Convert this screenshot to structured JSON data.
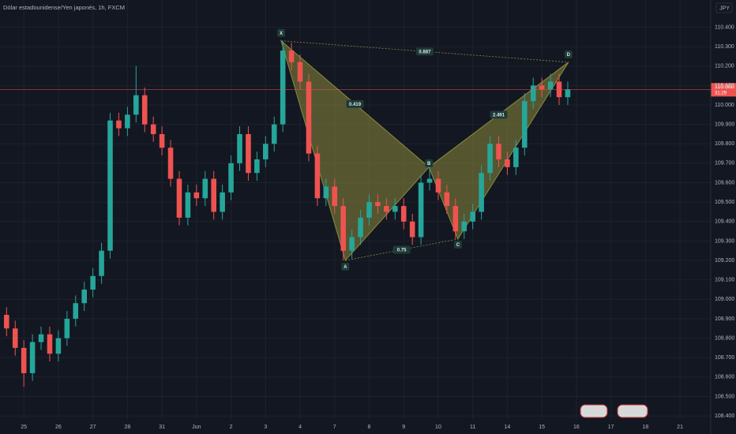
{
  "chart_data": {
    "type": "candlestick",
    "title": "Dólar estadounidense/Yen japonés, 1h, FXCM",
    "currency": "JPY",
    "up_color": "#26a69a",
    "down_color": "#ef5350",
    "grid": true,
    "xlim": [
      -0.69,
      19.89
    ],
    "ylim": [
      108.38,
      110.54
    ],
    "xticks": [
      {
        "value": 0,
        "label": "25"
      },
      {
        "value": 1,
        "label": "26"
      },
      {
        "value": 2,
        "label": "27"
      },
      {
        "value": 3,
        "label": "28"
      },
      {
        "value": 4,
        "label": "31"
      },
      {
        "value": 5,
        "label": "Jun"
      },
      {
        "value": 6,
        "label": "2"
      },
      {
        "value": 7,
        "label": "3"
      },
      {
        "value": 8,
        "label": "4"
      },
      {
        "value": 9,
        "label": "7"
      },
      {
        "value": 10,
        "label": "8"
      },
      {
        "value": 11,
        "label": "9"
      },
      {
        "value": 12,
        "label": "10"
      },
      {
        "value": 13,
        "label": "11"
      },
      {
        "value": 14,
        "label": "14"
      },
      {
        "value": 15,
        "label": "15"
      },
      {
        "value": 16,
        "label": "16"
      },
      {
        "value": 17,
        "label": "17"
      },
      {
        "value": 18,
        "label": "18"
      },
      {
        "value": 19,
        "label": "21"
      }
    ],
    "yticks": [
      {
        "value": 108.4,
        "label": "108.400"
      },
      {
        "value": 108.5,
        "label": "108.500"
      },
      {
        "value": 108.6,
        "label": "108.600"
      },
      {
        "value": 108.7,
        "label": "108.700"
      },
      {
        "value": 108.8,
        "label": "108.800"
      },
      {
        "value": 108.9,
        "label": "108.900"
      },
      {
        "value": 109.0,
        "label": "109.000"
      },
      {
        "value": 109.1,
        "label": "109.100"
      },
      {
        "value": 109.2,
        "label": "109.200"
      },
      {
        "value": 109.3,
        "label": "109.300"
      },
      {
        "value": 109.4,
        "label": "109.400"
      },
      {
        "value": 109.5,
        "label": "109.500"
      },
      {
        "value": 109.6,
        "label": "109.600"
      },
      {
        "value": 109.7,
        "label": "109.700"
      },
      {
        "value": 109.8,
        "label": "109.800"
      },
      {
        "value": 109.9,
        "label": "109.900"
      },
      {
        "value": 110.0,
        "label": "110.000"
      },
      {
        "value": 110.1,
        "label": "110.100"
      },
      {
        "value": 110.2,
        "label": "110.200"
      },
      {
        "value": 110.3,
        "label": "110.300"
      },
      {
        "value": 110.4,
        "label": "110.400"
      }
    ],
    "x": [
      -0.5,
      -0.25,
      0,
      0.25,
      0.5,
      0.75,
      1,
      1.25,
      1.5,
      1.75,
      2,
      2.25,
      2.5,
      2.75,
      3,
      3.25,
      3.5,
      3.75,
      4,
      4.25,
      4.5,
      4.75,
      5,
      5.25,
      5.5,
      5.75,
      6,
      6.25,
      6.5,
      6.75,
      7,
      7.25,
      7.5,
      7.75,
      8,
      8.25,
      8.5,
      8.75,
      9,
      9.25,
      9.5,
      9.75,
      10,
      10.25,
      10.5,
      10.75,
      11,
      11.25,
      11.5,
      11.75,
      12,
      12.25,
      12.5,
      12.75,
      13,
      13.25,
      13.5,
      13.75,
      14,
      14.25,
      14.5,
      14.75,
      15,
      15.25,
      15.5,
      15.75
    ],
    "open": [
      108.92,
      108.85,
      108.75,
      108.62,
      108.78,
      108.82,
      108.72,
      108.8,
      108.9,
      108.98,
      109.05,
      109.12,
      109.25,
      109.92,
      109.88,
      109.95,
      110.05,
      109.9,
      109.85,
      109.78,
      109.62,
      109.42,
      109.55,
      109.52,
      109.62,
      109.45,
      109.55,
      109.7,
      109.85,
      109.65,
      109.72,
      109.8,
      109.9,
      110.28,
      110.22,
      110.12,
      109.75,
      109.52,
      109.58,
      109.48,
      109.25,
      109.32,
      109.42,
      109.5,
      109.48,
      109.45,
      109.48,
      109.4,
      109.32,
      109.6,
      109.62,
      109.55,
      109.48,
      109.35,
      109.4,
      109.45,
      109.65,
      109.8,
      109.72,
      109.68,
      109.78,
      110.02,
      110.1,
      110.08,
      110.12,
      110.04
    ],
    "high": [
      108.96,
      108.89,
      108.79,
      108.82,
      108.86,
      108.86,
      108.84,
      108.94,
      109.02,
      109.09,
      109.16,
      109.29,
      109.96,
      109.96,
      109.99,
      110.2,
      110.09,
      109.94,
      109.89,
      109.82,
      109.66,
      109.59,
      109.59,
      109.66,
      109.66,
      109.59,
      109.74,
      109.89,
      109.89,
      109.76,
      109.84,
      109.94,
      110.33,
      110.32,
      110.26,
      110.16,
      109.79,
      109.62,
      109.62,
      109.52,
      109.36,
      109.46,
      109.54,
      109.54,
      109.52,
      109.52,
      109.52,
      109.44,
      109.64,
      109.68,
      109.66,
      109.59,
      109.52,
      109.44,
      109.49,
      109.69,
      109.84,
      109.84,
      109.76,
      109.82,
      110.06,
      110.14,
      110.14,
      110.16,
      110.16,
      110.12
    ],
    "low": [
      108.81,
      108.71,
      108.55,
      108.58,
      108.74,
      108.68,
      108.68,
      108.76,
      108.86,
      108.94,
      109.01,
      109.08,
      109.21,
      109.84,
      109.84,
      109.91,
      109.86,
      109.81,
      109.74,
      109.58,
      109.38,
      109.38,
      109.48,
      109.48,
      109.41,
      109.41,
      109.51,
      109.66,
      109.61,
      109.61,
      109.68,
      109.76,
      109.86,
      110.18,
      110.08,
      109.71,
      109.48,
      109.48,
      109.44,
      109.2,
      109.21,
      109.28,
      109.38,
      109.44,
      109.41,
      109.41,
      109.36,
      109.28,
      109.28,
      109.56,
      109.51,
      109.44,
      109.31,
      109.31,
      109.36,
      109.41,
      109.61,
      109.68,
      109.64,
      109.64,
      109.74,
      109.98,
      110.04,
      110.04,
      110.0,
      110.0
    ],
    "close": [
      108.85,
      108.75,
      108.62,
      108.78,
      108.82,
      108.72,
      108.8,
      108.9,
      108.98,
      109.05,
      109.12,
      109.25,
      109.92,
      109.88,
      109.95,
      110.05,
      109.9,
      109.85,
      109.78,
      109.62,
      109.42,
      109.55,
      109.52,
      109.62,
      109.45,
      109.55,
      109.7,
      109.85,
      109.65,
      109.72,
      109.8,
      109.9,
      110.28,
      110.22,
      110.12,
      109.75,
      109.52,
      109.58,
      109.48,
      109.25,
      109.32,
      109.42,
      109.5,
      109.48,
      109.45,
      109.48,
      109.4,
      109.32,
      109.6,
      109.62,
      109.55,
      109.48,
      109.35,
      109.4,
      109.45,
      109.65,
      109.8,
      109.72,
      109.68,
      109.78,
      110.02,
      110.1,
      110.08,
      110.12,
      110.04,
      110.08
    ],
    "last_price": {
      "value": 110.08,
      "label": "110.080"
    },
    "countdown": "31:29",
    "pattern": {
      "color": "#8c8a3c",
      "points": [
        {
          "label": "X",
          "x": 7.45,
          "y": 110.33
        },
        {
          "label": "A",
          "x": 9.31,
          "y": 109.2
        },
        {
          "label": "B",
          "x": 11.73,
          "y": 109.68
        },
        {
          "label": "C",
          "x": 12.57,
          "y": 109.31
        },
        {
          "label": "D",
          "x": 15.77,
          "y": 110.22
        }
      ],
      "ratios": [
        "0.419",
        "0.887",
        "0.75",
        "2.491"
      ]
    }
  }
}
